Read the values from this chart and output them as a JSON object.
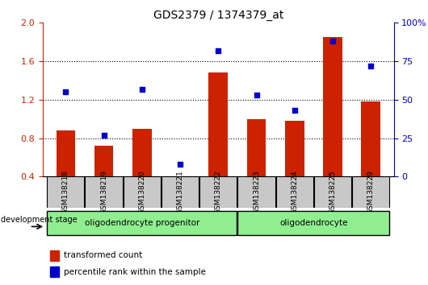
{
  "title": "GDS2379 / 1374379_at",
  "samples": [
    "GSM138218",
    "GSM138219",
    "GSM138220",
    "GSM138221",
    "GSM138222",
    "GSM138223",
    "GSM138224",
    "GSM138225",
    "GSM138229"
  ],
  "red_bars": [
    0.88,
    0.72,
    0.9,
    0.4,
    1.48,
    1.0,
    0.98,
    1.85,
    1.18
  ],
  "blue_dots": [
    0.55,
    0.27,
    0.57,
    0.08,
    0.82,
    0.53,
    0.43,
    0.88,
    0.72
  ],
  "ylim_left": [
    0.4,
    2.0
  ],
  "ylim_right": [
    0,
    100
  ],
  "yticks_left": [
    0.4,
    0.8,
    1.2,
    1.6,
    2.0
  ],
  "yticks_right": [
    0,
    25,
    50,
    75,
    100
  ],
  "ytick_labels_right": [
    "0",
    "25",
    "50",
    "75",
    "100%"
  ],
  "red_color": "#cc2200",
  "blue_color": "#0000cc",
  "bar_width": 0.5,
  "groups": [
    {
      "label": "oligodendrocyte progenitor",
      "start": 0,
      "end": 4,
      "color": "#90ee90"
    },
    {
      "label": "oligodendrocyte",
      "start": 5,
      "end": 8,
      "color": "#90ee90"
    }
  ],
  "group_box_color": "#c8c8c8",
  "dev_stage_label": "development stage",
  "legend_items": [
    {
      "label": "transformed count",
      "color": "#cc2200"
    },
    {
      "label": "percentile rank within the sample",
      "color": "#0000cc"
    }
  ]
}
